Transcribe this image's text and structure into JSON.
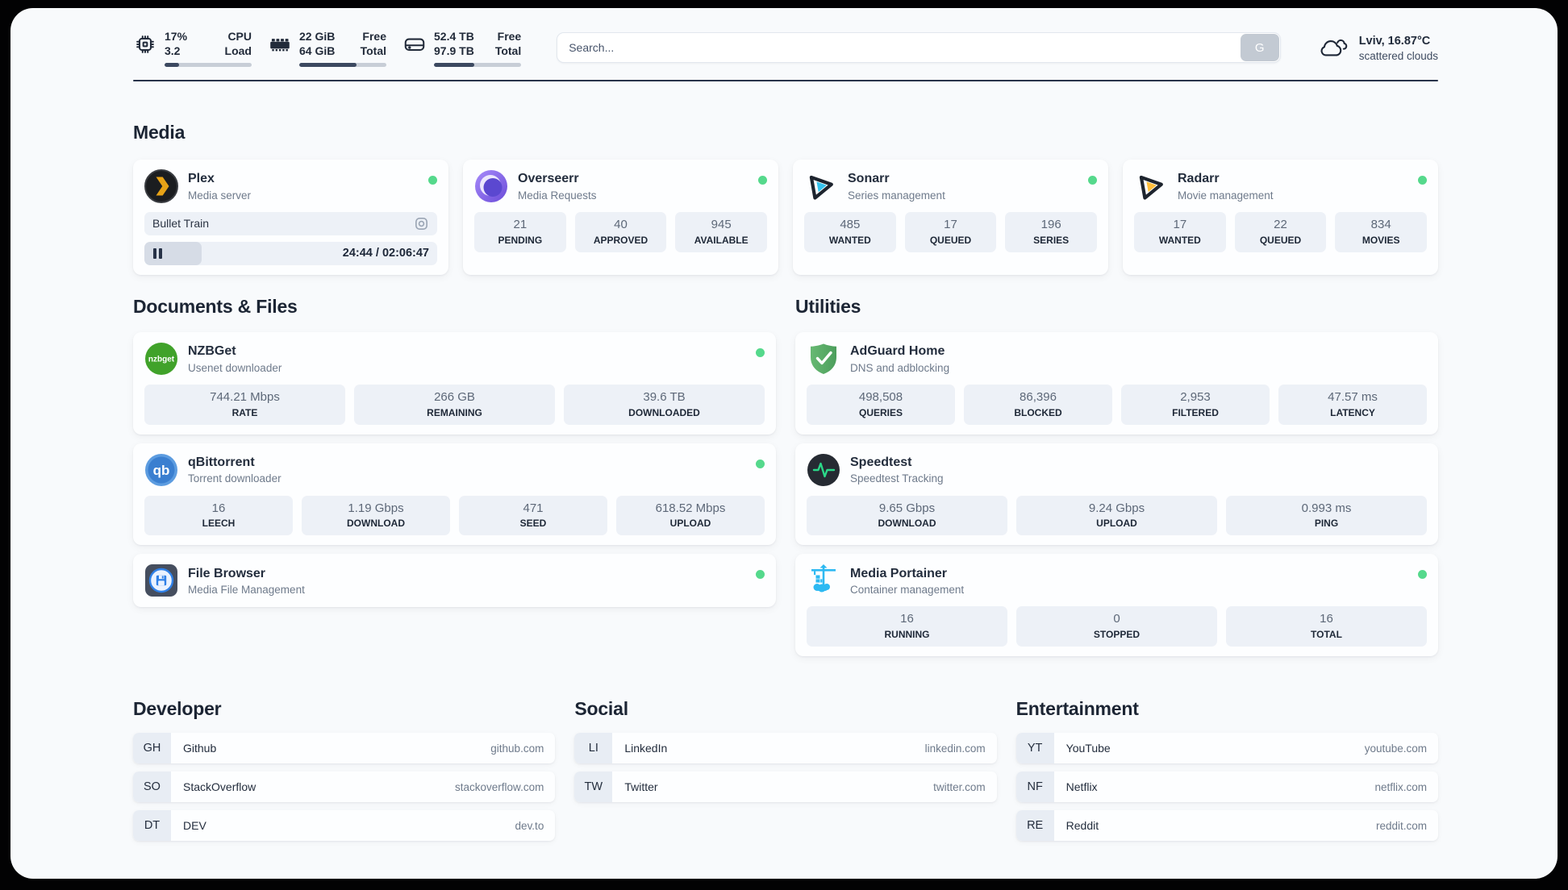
{
  "header": {
    "cpu": {
      "value_top": "17%",
      "value_bottom": "3.2",
      "label_top": "CPU",
      "label_bottom": "Load",
      "progress_pct": 17
    },
    "memory": {
      "value_top": "22 GiB",
      "value_bottom": "64 GiB",
      "label_top": "Free",
      "label_bottom": "Total",
      "progress_pct": 66
    },
    "disk": {
      "value_top": "52.4 TB",
      "value_bottom": "97.9 TB",
      "label_top": "Free",
      "label_bottom": "Total",
      "progress_pct": 46
    },
    "search": {
      "placeholder": "Search...",
      "button_label": "G"
    },
    "weather": {
      "summary": "Lviv, 16.87°C",
      "condition": "scattered clouds"
    }
  },
  "sections": {
    "media": {
      "title": "Media"
    },
    "documents": {
      "title": "Documents & Files"
    },
    "utilities": {
      "title": "Utilities"
    },
    "developer": {
      "title": "Developer"
    },
    "social": {
      "title": "Social"
    },
    "entertainment": {
      "title": "Entertainment"
    }
  },
  "services": {
    "plex": {
      "name": "Plex",
      "description": "Media server",
      "online": true,
      "player": {
        "track": "Bullet Train",
        "time_display": "24:44 / 02:06:47",
        "progress_pct": 19.5
      }
    },
    "overseerr": {
      "name": "Overseerr",
      "description": "Media Requests",
      "online": true,
      "stats": [
        {
          "value": "21",
          "label": "PENDING"
        },
        {
          "value": "40",
          "label": "APPROVED"
        },
        {
          "value": "945",
          "label": "AVAILABLE"
        }
      ]
    },
    "sonarr": {
      "name": "Sonarr",
      "description": "Series management",
      "online": true,
      "stats": [
        {
          "value": "485",
          "label": "WANTED"
        },
        {
          "value": "17",
          "label": "QUEUED"
        },
        {
          "value": "196",
          "label": "SERIES"
        }
      ]
    },
    "radarr": {
      "name": "Radarr",
      "description": "Movie management",
      "online": true,
      "stats": [
        {
          "value": "17",
          "label": "WANTED"
        },
        {
          "value": "22",
          "label": "QUEUED"
        },
        {
          "value": "834",
          "label": "MOVIES"
        }
      ]
    },
    "nzbget": {
      "name": "NZBGet",
      "description": "Usenet downloader",
      "online": true,
      "stats": [
        {
          "value": "744.21 Mbps",
          "label": "RATE"
        },
        {
          "value": "266 GB",
          "label": "REMAINING"
        },
        {
          "value": "39.6 TB",
          "label": "DOWNLOADED"
        }
      ]
    },
    "qbittorrent": {
      "name": "qBittorrent",
      "description": "Torrent downloader",
      "online": true,
      "stats": [
        {
          "value": "16",
          "label": "LEECH"
        },
        {
          "value": "1.19 Gbps",
          "label": "DOWNLOAD"
        },
        {
          "value": "471",
          "label": "SEED"
        },
        {
          "value": "618.52 Mbps",
          "label": "UPLOAD"
        }
      ]
    },
    "filebrowser": {
      "name": "File Browser",
      "description": "Media File Management",
      "online": true
    },
    "adguard": {
      "name": "AdGuard Home",
      "description": "DNS and adblocking",
      "online": false,
      "stats": [
        {
          "value": "498,508",
          "label": "QUERIES"
        },
        {
          "value": "86,396",
          "label": "BLOCKED"
        },
        {
          "value": "2,953",
          "label": "FILTERED"
        },
        {
          "value": "47.57 ms",
          "label": "LATENCY"
        }
      ]
    },
    "speedtest": {
      "name": "Speedtest",
      "description": "Speedtest Tracking",
      "online": false,
      "stats": [
        {
          "value": "9.65 Gbps",
          "label": "DOWNLOAD"
        },
        {
          "value": "9.24 Gbps",
          "label": "UPLOAD"
        },
        {
          "value": "0.993 ms",
          "label": "PING"
        }
      ]
    },
    "portainer": {
      "name": "Media Portainer",
      "description": "Container management",
      "online": true,
      "stats": [
        {
          "value": "16",
          "label": "RUNNING"
        },
        {
          "value": "0",
          "label": "STOPPED"
        },
        {
          "value": "16",
          "label": "TOTAL"
        }
      ]
    }
  },
  "bookmarks": {
    "developer": [
      {
        "abbr": "GH",
        "name": "Github",
        "domain": "github.com"
      },
      {
        "abbr": "SO",
        "name": "StackOverflow",
        "domain": "stackoverflow.com"
      },
      {
        "abbr": "DT",
        "name": "DEV",
        "domain": "dev.to"
      }
    ],
    "social": [
      {
        "abbr": "LI",
        "name": "LinkedIn",
        "domain": "linkedin.com"
      },
      {
        "abbr": "TW",
        "name": "Twitter",
        "domain": "twitter.com"
      }
    ],
    "entertainment": [
      {
        "abbr": "YT",
        "name": "YouTube",
        "domain": "youtube.com"
      },
      {
        "abbr": "NF",
        "name": "Netflix",
        "domain": "netflix.com"
      },
      {
        "abbr": "RE",
        "name": "Reddit",
        "domain": "reddit.com"
      }
    ]
  },
  "colors": {
    "status_online": "#55d98c",
    "panel_bg": "#f8fafc",
    "divider": "#28334a"
  }
}
